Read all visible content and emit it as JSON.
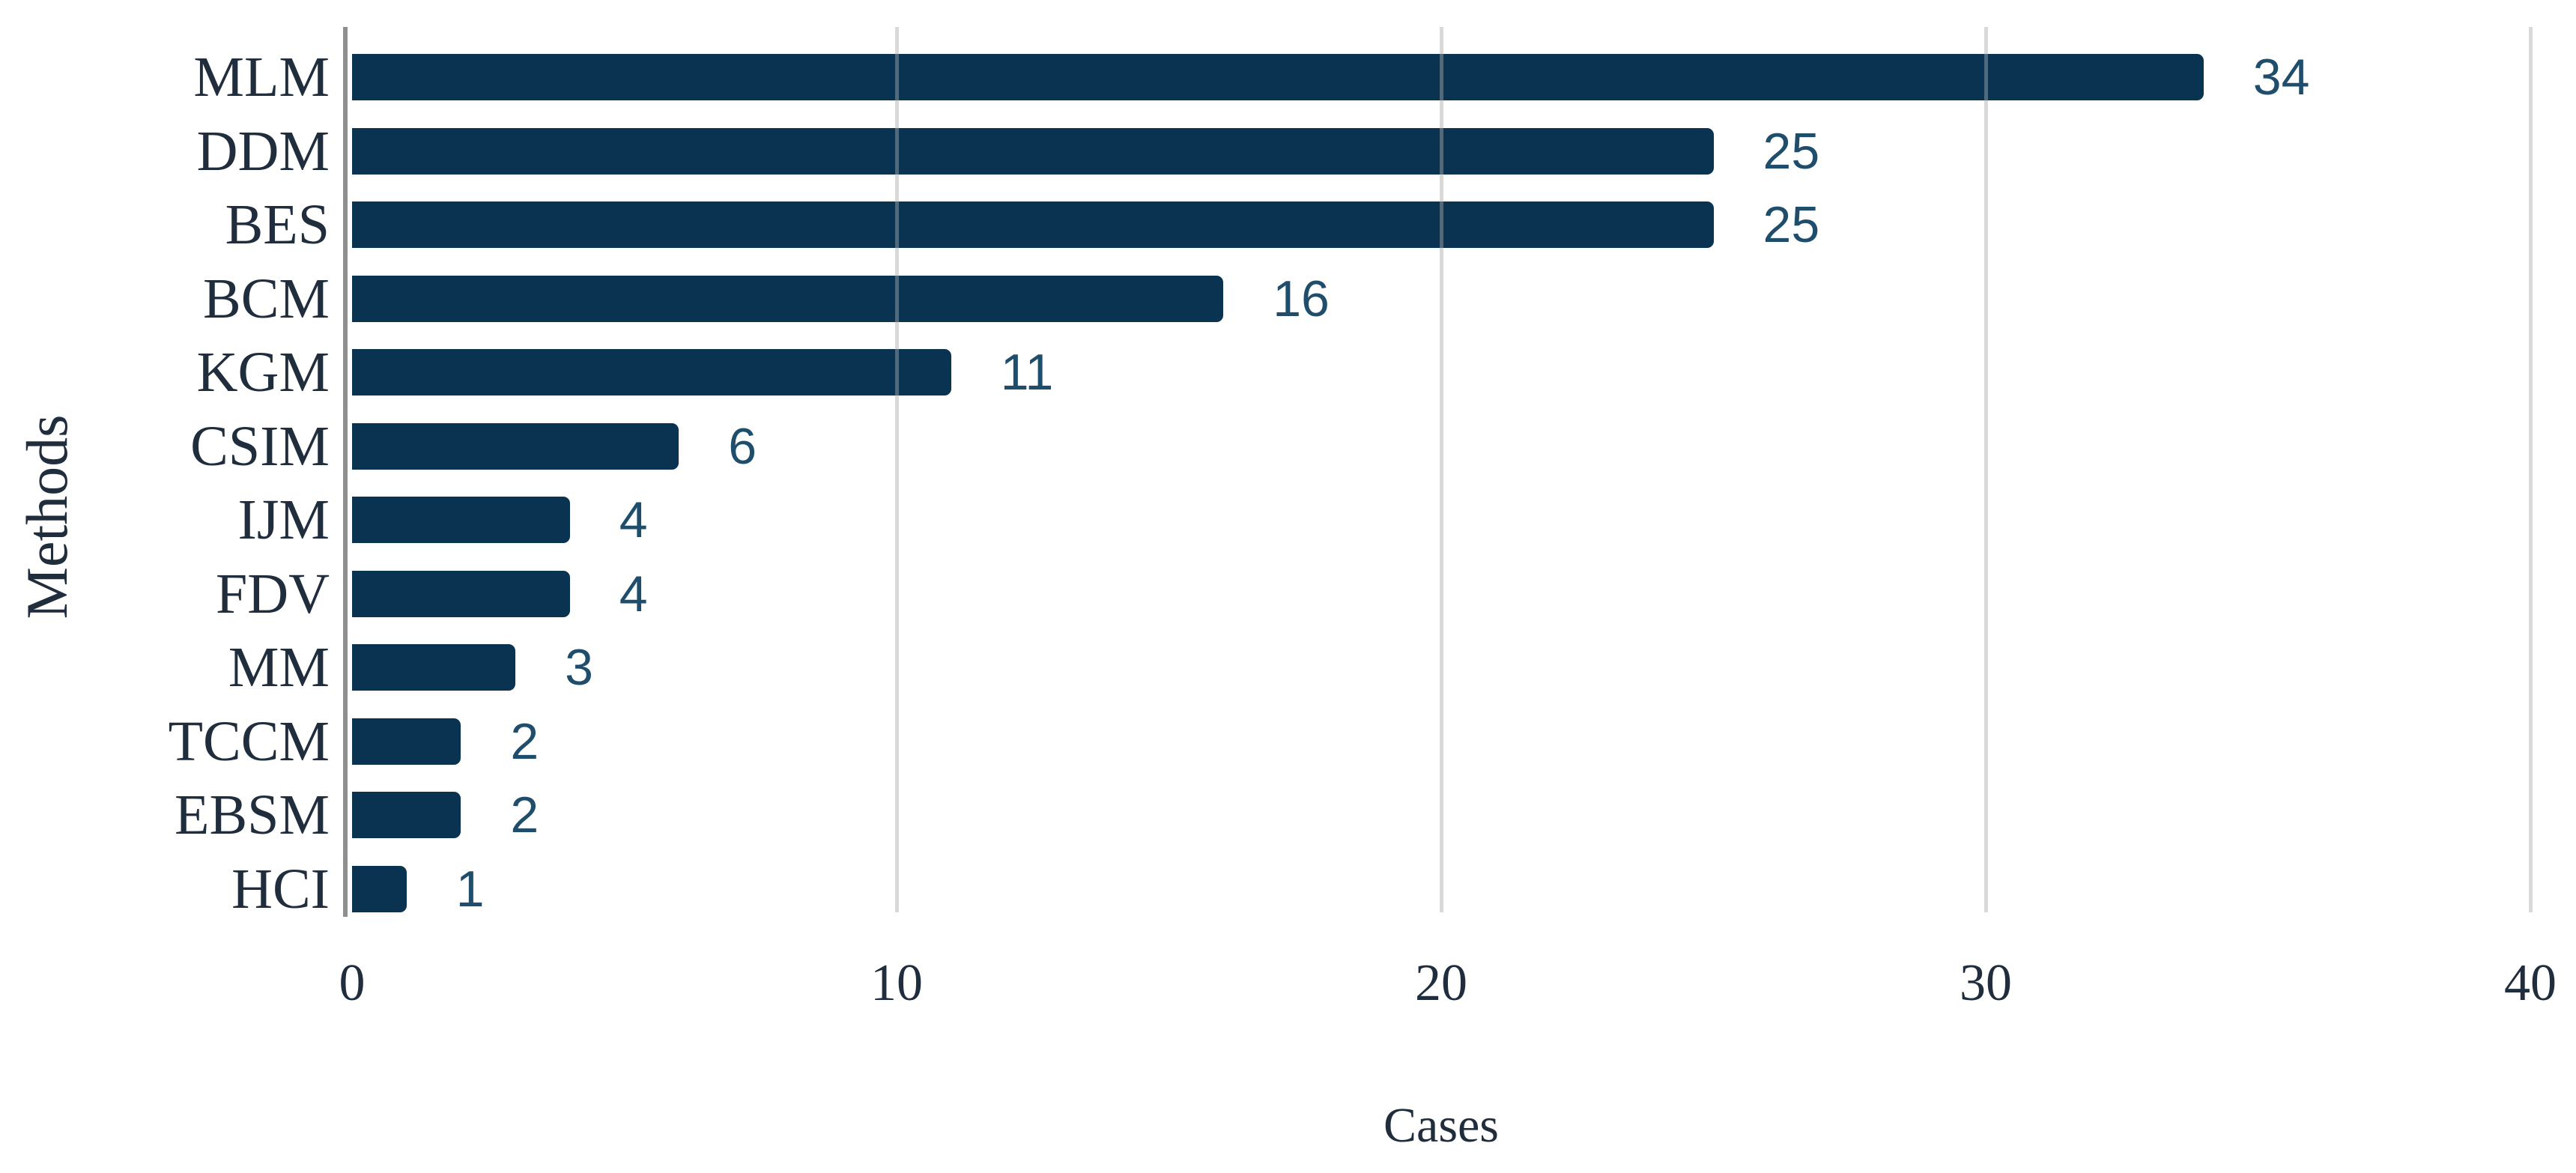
{
  "chart_data": {
    "type": "bar",
    "orientation": "horizontal",
    "title": "",
    "xlabel": "Cases",
    "ylabel": "Methods",
    "categories": [
      "MLM",
      "DDM",
      "BES",
      "BCM",
      "KGM",
      "CSIM",
      "IJM",
      "FDV",
      "MM",
      "TCCM",
      "EBSM",
      "HCI"
    ],
    "values": [
      34,
      25,
      25,
      16,
      11,
      6,
      4,
      4,
      3,
      2,
      2,
      1
    ],
    "x_ticks": [
      0,
      10,
      20,
      30,
      40
    ],
    "xlim": [
      0,
      40
    ],
    "grid": "vertical-gridlines-at-ticks-over-bars",
    "legend": "none",
    "colors": {
      "bar": "#093350",
      "value_label": "#1f4e6d",
      "axis_text": "#1f2d3d",
      "axis_line": "#8f8f8f",
      "gridline": "rgba(170,170,170,0.45)",
      "background": "#ffffff"
    }
  }
}
